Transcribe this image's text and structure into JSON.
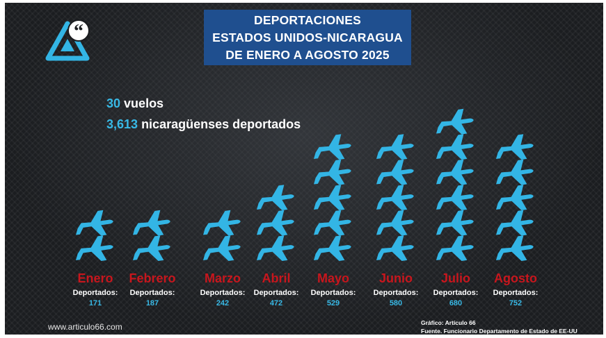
{
  "header": {
    "title_lines": [
      "DEPORTACIONES",
      "ESTADOS UNIDOS-NICARAGUA",
      "DE ENERO A AGOSTO 2025"
    ]
  },
  "summary": {
    "flights_value": "30",
    "flights_text": "vuelos",
    "deported_value": "3,613",
    "deported_text": "nicaragüenses deportados"
  },
  "chart_data": {
    "type": "pictograph",
    "title": "DEPORTACIONES ESTADOS UNIDOS-NICARAGUA DE ENERO A AGOSTO 2025",
    "categories": [
      "Enero",
      "Febrero",
      "Marzo",
      "Abril",
      "Mayo",
      "Junio",
      "Julio",
      "Agosto"
    ],
    "series": [
      {
        "name": "vuelos",
        "values": [
          2,
          2,
          2,
          3,
          5,
          5,
          6,
          5
        ]
      },
      {
        "name": "Deportados:",
        "values": [
          171,
          187,
          242,
          472,
          529,
          580,
          680,
          752
        ]
      }
    ],
    "value_label": "Deportados:",
    "icon": "airplane-icon",
    "colors": {
      "icon": "#33b5e5",
      "month": "#c8161d",
      "value": "#38b9e6"
    }
  },
  "footer": {
    "website": "www.articulo66.com",
    "credit": "Gráfico: Artículo 66",
    "source": "Fuente. Funcionario Departamento de Estado de EE-UU"
  },
  "colors": {
    "title_bg": "#1f4f8f",
    "accent": "#38b9e6",
    "background": "#1b1d20"
  }
}
